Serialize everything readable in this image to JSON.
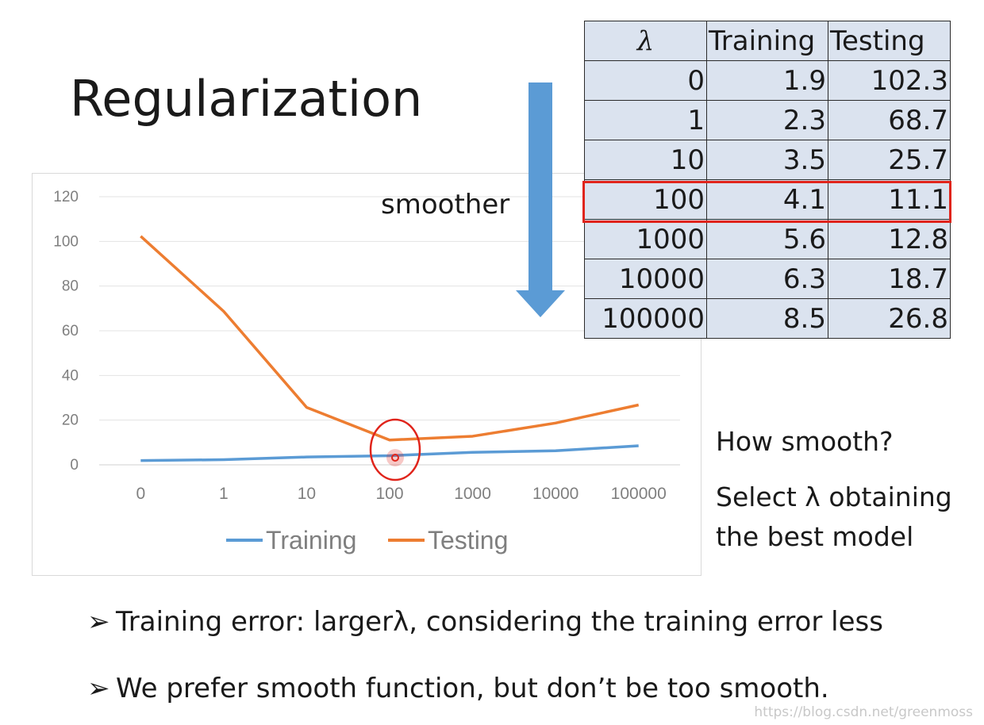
{
  "title": "Regularization",
  "smoother_label": "smoother",
  "table": {
    "headers": [
      "λ",
      "Training",
      "Testing"
    ],
    "rows": [
      [
        "0",
        "1.9",
        "102.3"
      ],
      [
        "1",
        "2.3",
        "68.7"
      ],
      [
        "10",
        "3.5",
        "25.7"
      ],
      [
        "100",
        "4.1",
        "11.1"
      ],
      [
        "1000",
        "5.6",
        "12.8"
      ],
      [
        "10000",
        "6.3",
        "18.7"
      ],
      [
        "100000",
        "8.5",
        "26.8"
      ]
    ],
    "highlighted_row": 3,
    "highlight_color": "#e0241b"
  },
  "side_text": {
    "line1": "How smooth?",
    "line2": "Select λ obtaining",
    "line3": "the best model"
  },
  "bullets": [
    "Training error: largerλ, considering the training error less",
    "We prefer smooth function, but don’t be too smooth."
  ],
  "watermark": "https://blog.csdn.net/greenmoss",
  "colors": {
    "training": "#5b9bd5",
    "testing": "#ed7d31",
    "arrow": "#5b9bd5",
    "marker": "#e0241b"
  },
  "chart_data": {
    "type": "line",
    "categories": [
      "0",
      "1",
      "10",
      "100",
      "1000",
      "10000",
      "100000"
    ],
    "series": [
      {
        "name": "Training",
        "values": [
          1.9,
          2.3,
          3.5,
          4.1,
          5.6,
          6.3,
          8.5
        ]
      },
      {
        "name": "Testing",
        "values": [
          102.3,
          68.7,
          25.7,
          11.1,
          12.8,
          18.7,
          26.8
        ]
      }
    ],
    "yticks": [
      "0",
      "20",
      "40",
      "60",
      "80",
      "100",
      "120"
    ],
    "ylim": [
      0,
      120
    ],
    "grid": true,
    "legend": "bottom",
    "highlight_category": "100"
  }
}
